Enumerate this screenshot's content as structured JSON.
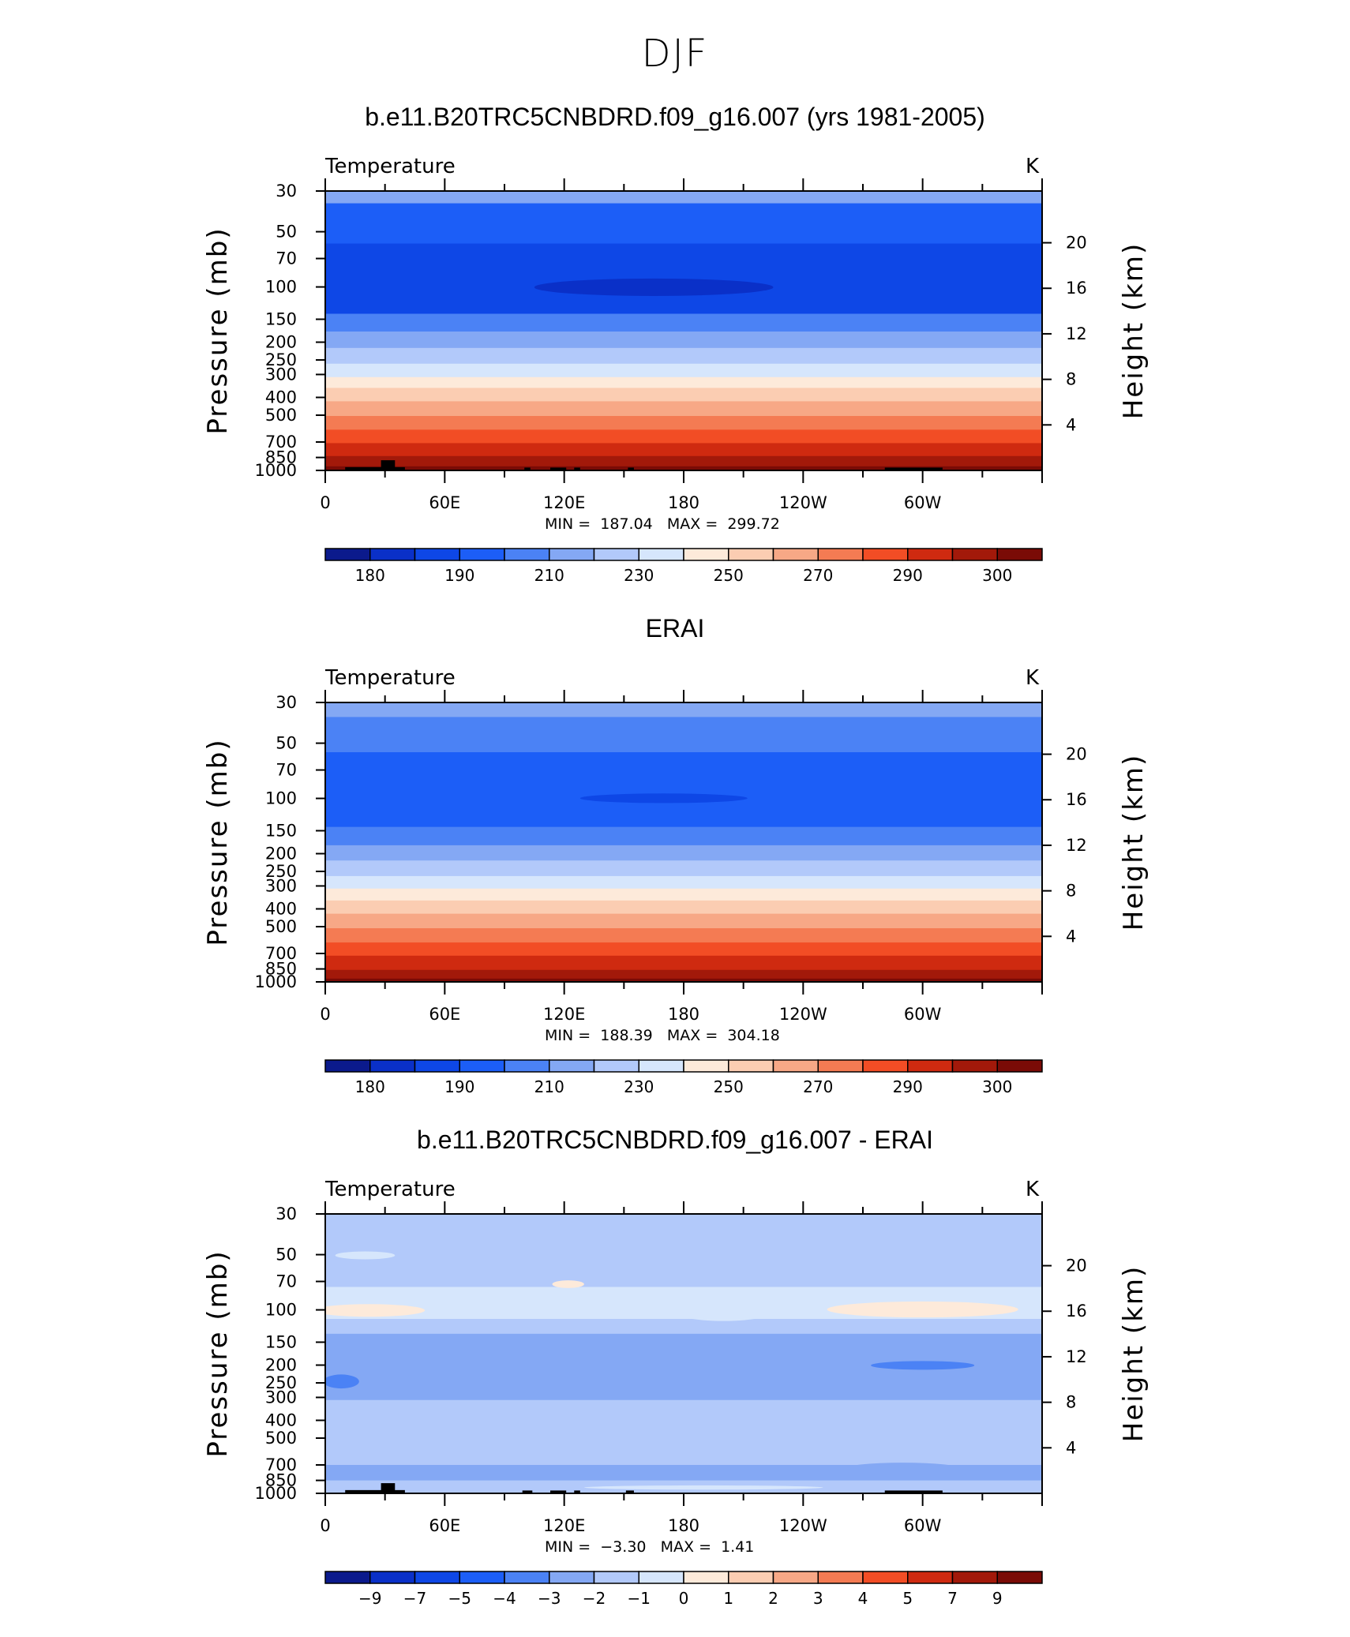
{
  "page": {
    "title": "DJF"
  },
  "colors": {
    "temperature_levels": [
      "#0b1a8c",
      "#0a30c8",
      "#0e47e6",
      "#1c5ef7",
      "#4b82f5",
      "#84a8f4",
      "#b2c9fa",
      "#d6e6fc",
      "#fdeada",
      "#fbcdb2",
      "#f7a886",
      "#f47b53",
      "#f24d25",
      "#cf2a10",
      "#a2190a",
      "#7a0b06"
    ],
    "difference_levels": [
      "#0b1a8c",
      "#0a30c8",
      "#0e47e6",
      "#1c5ef7",
      "#4b82f5",
      "#84a8f4",
      "#b2c9fa",
      "#d6e6fc",
      "#fdeada",
      "#fbcdb2",
      "#f7a886",
      "#f47b53",
      "#f24d25",
      "#cf2a10",
      "#a2190a",
      "#7a0b06"
    ],
    "topography": "#000000"
  },
  "chart_data": [
    {
      "type": "heatmap",
      "title": "b.e11.B20TRC5CNBDRD.f09_g16.007 (yrs 1981-2005)",
      "variable": "Temperature",
      "units": "K",
      "xlabel": "",
      "ylabel": "Pressure (mb)",
      "y2label": "Height (km)",
      "x_ticklabels": [
        "0",
        "60E",
        "120E",
        "180",
        "120W",
        "60W"
      ],
      "x_tick_lon": [
        0,
        60,
        120,
        180,
        240,
        300
      ],
      "xlim": [
        0,
        360
      ],
      "y_ticks": [
        30,
        50,
        70,
        100,
        150,
        200,
        250,
        300,
        400,
        500,
        700,
        850,
        1000
      ],
      "ylim": [
        1000,
        30
      ],
      "y2_ticks": [
        4,
        8,
        12,
        16,
        20
      ],
      "min_label": "MIN =",
      "min_value": "187.04",
      "max_label": "MAX =",
      "max_value": "299.72",
      "colorbar_labels": [
        "180",
        "190",
        "210",
        "230",
        "250",
        "270",
        "290",
        "300"
      ],
      "colorbar_levels": [
        180,
        185,
        190,
        200,
        210,
        220,
        230,
        240,
        250,
        260,
        270,
        280,
        290,
        295,
        300
      ],
      "bands": [
        {
          "p_top": 30,
          "p_bot": 35,
          "level": 5
        },
        {
          "p_top": 35,
          "p_bot": 58,
          "level": 3
        },
        {
          "p_top": 58,
          "p_bot": 140,
          "level": 2
        },
        {
          "p_top": 140,
          "p_bot": 175,
          "level": 4
        },
        {
          "p_top": 175,
          "p_bot": 215,
          "level": 5
        },
        {
          "p_top": 215,
          "p_bot": 262,
          "level": 6
        },
        {
          "p_top": 262,
          "p_bot": 310,
          "level": 7
        },
        {
          "p_top": 310,
          "p_bot": 355,
          "level": 8
        },
        {
          "p_top": 355,
          "p_bot": 420,
          "level": 9
        },
        {
          "p_top": 420,
          "p_bot": 505,
          "level": 10
        },
        {
          "p_top": 505,
          "p_bot": 600,
          "level": 11
        },
        {
          "p_top": 600,
          "p_bot": 710,
          "level": 12
        },
        {
          "p_top": 710,
          "p_bot": 835,
          "level": 13
        },
        {
          "p_top": 835,
          "p_bot": 950,
          "level": 14
        },
        {
          "p_top": 950,
          "p_bot": 1000,
          "level": 15
        }
      ],
      "blobs": [
        {
          "lon": 165,
          "p": 100,
          "dlon": 60,
          "p_top": 90,
          "p_bot": 112,
          "level": 1
        }
      ],
      "topography": [
        {
          "lon0": 10,
          "lon1": 40,
          "p_top": 960
        },
        {
          "lon0": 28,
          "lon1": 35,
          "p_top": 880
        },
        {
          "lon0": 100,
          "lon1": 103,
          "p_top": 965
        },
        {
          "lon0": 113,
          "lon1": 121,
          "p_top": 965
        },
        {
          "lon0": 125,
          "lon1": 128,
          "p_top": 965
        },
        {
          "lon0": 152,
          "lon1": 155,
          "p_top": 965
        },
        {
          "lon0": 281,
          "lon1": 310,
          "p_top": 965
        }
      ]
    },
    {
      "type": "heatmap",
      "title": "ERAI",
      "variable": "Temperature",
      "units": "K",
      "xlabel": "",
      "ylabel": "Pressure (mb)",
      "y2label": "Height (km)",
      "x_ticklabels": [
        "0",
        "60E",
        "120E",
        "180",
        "120W",
        "60W"
      ],
      "x_tick_lon": [
        0,
        60,
        120,
        180,
        240,
        300
      ],
      "xlim": [
        0,
        360
      ],
      "y_ticks": [
        30,
        50,
        70,
        100,
        150,
        200,
        250,
        300,
        400,
        500,
        700,
        850,
        1000
      ],
      "ylim": [
        1000,
        30
      ],
      "y2_ticks": [
        4,
        8,
        12,
        16,
        20
      ],
      "min_label": "MIN =",
      "min_value": "188.39",
      "max_label": "MAX =",
      "max_value": "304.18",
      "colorbar_labels": [
        "180",
        "190",
        "210",
        "230",
        "250",
        "270",
        "290",
        "300"
      ],
      "colorbar_levels": [
        180,
        185,
        190,
        200,
        210,
        220,
        230,
        240,
        250,
        260,
        270,
        280,
        290,
        295,
        300
      ],
      "bands": [
        {
          "p_top": 30,
          "p_bot": 36,
          "level": 5
        },
        {
          "p_top": 36,
          "p_bot": 56,
          "level": 4
        },
        {
          "p_top": 56,
          "p_bot": 143,
          "level": 3
        },
        {
          "p_top": 143,
          "p_bot": 180,
          "level": 4
        },
        {
          "p_top": 180,
          "p_bot": 218,
          "level": 5
        },
        {
          "p_top": 218,
          "p_bot": 265,
          "level": 6
        },
        {
          "p_top": 265,
          "p_bot": 310,
          "level": 7
        },
        {
          "p_top": 310,
          "p_bot": 360,
          "level": 8
        },
        {
          "p_top": 360,
          "p_bot": 425,
          "level": 9
        },
        {
          "p_top": 425,
          "p_bot": 510,
          "level": 10
        },
        {
          "p_top": 510,
          "p_bot": 610,
          "level": 11
        },
        {
          "p_top": 610,
          "p_bot": 720,
          "level": 12
        },
        {
          "p_top": 720,
          "p_bot": 860,
          "level": 13
        },
        {
          "p_top": 860,
          "p_bot": 960,
          "level": 14
        },
        {
          "p_top": 960,
          "p_bot": 1000,
          "level": 15
        }
      ],
      "blobs": [
        {
          "lon": 170,
          "p": 100,
          "dlon": 42,
          "p_top": 94,
          "p_bot": 106,
          "level": 2
        }
      ],
      "topography": []
    },
    {
      "type": "heatmap",
      "title": "b.e11.B20TRC5CNBDRD.f09_g16.007 - ERAI",
      "variable": "Temperature",
      "units": "K",
      "xlabel": "",
      "ylabel": "Pressure (mb)",
      "y2label": "Height (km)",
      "x_ticklabels": [
        "0",
        "60E",
        "120E",
        "180",
        "120W",
        "60W"
      ],
      "x_tick_lon": [
        0,
        60,
        120,
        180,
        240,
        300
      ],
      "xlim": [
        0,
        360
      ],
      "y_ticks": [
        30,
        50,
        70,
        100,
        150,
        200,
        250,
        300,
        400,
        500,
        700,
        850,
        1000
      ],
      "ylim": [
        1000,
        30
      ],
      "y2_ticks": [
        4,
        8,
        12,
        16,
        20
      ],
      "min_label": "MIN =",
      "min_value": "−3.30",
      "max_label": "MAX =",
      "max_value": "1.41",
      "colorbar_labels": [
        "−9",
        "−7",
        "−5",
        "−4",
        "−3",
        "−2",
        "−1",
        "0",
        "1",
        "2",
        "3",
        "4",
        "5",
        "7",
        "9"
      ],
      "colorbar_levels": [
        -9,
        -7,
        -5,
        -4,
        -3,
        -2,
        -1,
        0,
        1,
        2,
        3,
        4,
        5,
        7,
        9
      ],
      "bands": [
        {
          "p_top": 30,
          "p_bot": 36,
          "level": 6
        },
        {
          "p_top": 36,
          "p_bot": 75,
          "level": 6
        },
        {
          "p_top": 75,
          "p_bot": 112,
          "level": 7
        },
        {
          "p_top": 112,
          "p_bot": 135,
          "level": 6
        },
        {
          "p_top": 135,
          "p_bot": 310,
          "level": 5
        },
        {
          "p_top": 310,
          "p_bot": 430,
          "level": 6
        },
        {
          "p_top": 430,
          "p_bot": 700,
          "level": 6
        },
        {
          "p_top": 700,
          "p_bot": 850,
          "level": 5
        },
        {
          "p_top": 850,
          "p_bot": 1000,
          "level": 6
        }
      ],
      "blobs": [
        {
          "lon": 22,
          "p": 100,
          "dlon": 28,
          "p_top": 93,
          "p_bot": 109,
          "level": 8
        },
        {
          "lon": 300,
          "p": 100,
          "dlon": 48,
          "p_top": 90,
          "p_bot": 110,
          "level": 8
        },
        {
          "lon": 122,
          "p": 72,
          "dlon": 8,
          "p_top": 69,
          "p_bot": 76,
          "level": 8
        },
        {
          "lon": 20,
          "p": 50,
          "dlon": 15,
          "p_top": 48,
          "p_bot": 53,
          "level": 7
        },
        {
          "lon": 200,
          "p": 98,
          "dlon": 28,
          "p_top": 84,
          "p_bot": 115,
          "level": 7
        },
        {
          "lon": 300,
          "p": 200,
          "dlon": 26,
          "p_top": 190,
          "p_bot": 212,
          "level": 4
        },
        {
          "lon": 8,
          "p": 245,
          "dlon": 9,
          "p_top": 225,
          "p_bot": 268,
          "level": 4
        },
        {
          "lon": 290,
          "p": 740,
          "dlon": 30,
          "p_top": 680,
          "p_bot": 800,
          "level": 5
        },
        {
          "lon": 190,
          "p": 930,
          "dlon": 60,
          "p_top": 905,
          "p_bot": 955,
          "level": 7
        }
      ],
      "topography": [
        {
          "lon0": 10,
          "lon1": 40,
          "p_top": 960
        },
        {
          "lon0": 28,
          "lon1": 35,
          "p_top": 880
        },
        {
          "lon0": 99,
          "lon1": 104,
          "p_top": 965
        },
        {
          "lon0": 113,
          "lon1": 121,
          "p_top": 965
        },
        {
          "lon0": 125,
          "lon1": 128,
          "p_top": 965
        },
        {
          "lon0": 151,
          "lon1": 155,
          "p_top": 965
        },
        {
          "lon0": 281,
          "lon1": 310,
          "p_top": 965
        }
      ]
    }
  ]
}
